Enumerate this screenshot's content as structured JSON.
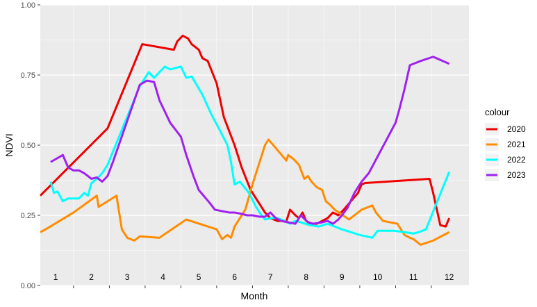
{
  "chart_data": {
    "type": "line",
    "xlabel": "Month",
    "ylabel": "NDVI",
    "legend_title": "colour",
    "legend_position": "right",
    "grid": true,
    "xlim": [
      0.57,
      12.55
    ],
    "ylim": [
      0,
      1
    ],
    "x_ticks": [
      1,
      2,
      3,
      4,
      5,
      6,
      7,
      8,
      9,
      10,
      11,
      12
    ],
    "y_ticks": [
      0,
      0.25,
      0.5,
      0.75,
      1
    ],
    "y_tick_labels": [
      "0.00",
      "0.25",
      "0.50",
      "0.75",
      "1.00"
    ],
    "series": [
      {
        "name": "2020",
        "color": "#ee0000",
        "x": [
          0.57,
          2.45,
          3.42,
          4.3,
          4.4,
          4.55,
          4.7,
          4.8,
          5.0,
          5.1,
          5.25,
          5.5,
          5.7,
          5.85,
          6.0,
          6.2,
          6.45,
          6.7,
          6.85,
          7.0,
          7.2,
          7.45,
          7.55,
          7.7,
          7.8,
          7.9,
          8.0,
          8.15,
          8.3,
          8.45,
          8.6,
          8.75,
          8.9,
          9.05,
          9.25,
          9.45,
          9.55,
          9.65,
          11.45,
          11.55,
          11.75,
          11.9,
          12.0
        ],
        "y": [
          0.32,
          0.56,
          0.86,
          0.84,
          0.87,
          0.89,
          0.88,
          0.86,
          0.84,
          0.81,
          0.8,
          0.72,
          0.6,
          0.55,
          0.5,
          0.42,
          0.34,
          0.29,
          0.26,
          0.24,
          0.23,
          0.23,
          0.27,
          0.25,
          0.24,
          0.26,
          0.23,
          0.22,
          0.22,
          0.23,
          0.24,
          0.26,
          0.25,
          0.27,
          0.3,
          0.33,
          0.36,
          0.365,
          0.38,
          0.33,
          0.215,
          0.21,
          0.24
        ]
      },
      {
        "name": "2021",
        "color": "#ff8c00",
        "x": [
          0.57,
          0.72,
          1.5,
          2.15,
          2.2,
          2.7,
          2.85,
          3.0,
          3.2,
          3.35,
          3.9,
          4.65,
          5.5,
          5.65,
          5.8,
          5.9,
          6.0,
          6.3,
          6.5,
          6.75,
          6.85,
          6.95,
          7.15,
          7.45,
          7.5,
          7.65,
          7.8,
          7.95,
          8.05,
          8.15,
          8.3,
          8.45,
          8.55,
          8.65,
          8.8,
          9.2,
          9.55,
          9.75,
          9.85,
          9.95,
          10.15,
          10.55,
          10.75,
          10.9,
          11.0,
          11.2,
          11.55,
          12.0
        ],
        "y": [
          0.19,
          0.2,
          0.26,
          0.32,
          0.28,
          0.32,
          0.2,
          0.17,
          0.16,
          0.175,
          0.17,
          0.235,
          0.2,
          0.165,
          0.18,
          0.17,
          0.21,
          0.27,
          0.36,
          0.46,
          0.5,
          0.52,
          0.49,
          0.445,
          0.465,
          0.45,
          0.43,
          0.38,
          0.39,
          0.37,
          0.35,
          0.34,
          0.3,
          0.29,
          0.27,
          0.235,
          0.27,
          0.28,
          0.285,
          0.26,
          0.23,
          0.22,
          0.18,
          0.17,
          0.165,
          0.145,
          0.16,
          0.19
        ]
      },
      {
        "name": "2022",
        "color": "#00ffff",
        "x": [
          0.86,
          0.95,
          1.05,
          1.2,
          1.35,
          1.5,
          1.65,
          1.8,
          1.9,
          2.0,
          2.15,
          2.3,
          2.45,
          3.35,
          3.6,
          3.75,
          3.9,
          4.05,
          4.2,
          4.5,
          4.65,
          4.8,
          5.1,
          5.35,
          5.6,
          5.8,
          5.9,
          6.0,
          6.15,
          6.4,
          6.6,
          6.75,
          6.85,
          7.0,
          7.2,
          7.4,
          7.55,
          7.7,
          7.85,
          8.1,
          8.35,
          8.6,
          9.0,
          9.5,
          9.85,
          10.0,
          10.45,
          10.75,
          11.0,
          11.15,
          11.35,
          12.0
        ],
        "y": [
          0.37,
          0.33,
          0.335,
          0.3,
          0.31,
          0.31,
          0.31,
          0.33,
          0.32,
          0.365,
          0.38,
          0.4,
          0.43,
          0.71,
          0.76,
          0.74,
          0.76,
          0.78,
          0.77,
          0.78,
          0.74,
          0.745,
          0.68,
          0.61,
          0.55,
          0.5,
          0.44,
          0.36,
          0.37,
          0.33,
          0.28,
          0.25,
          0.235,
          0.24,
          0.24,
          0.23,
          0.22,
          0.23,
          0.225,
          0.215,
          0.21,
          0.22,
          0.2,
          0.18,
          0.17,
          0.195,
          0.195,
          0.19,
          0.185,
          0.19,
          0.2,
          0.405
        ]
      },
      {
        "name": "2023",
        "color": "#a020f0",
        "x": [
          0.86,
          1.2,
          1.35,
          1.5,
          1.65,
          1.8,
          1.9,
          2.0,
          2.15,
          2.3,
          2.45,
          2.6,
          3.35,
          3.55,
          3.75,
          3.9,
          4.05,
          4.2,
          4.5,
          4.65,
          4.85,
          5.0,
          5.3,
          5.45,
          5.65,
          5.85,
          6.0,
          6.2,
          6.35,
          6.5,
          6.7,
          6.85,
          7.0,
          7.15,
          7.3,
          7.5,
          7.7,
          7.85,
          8.05,
          8.2,
          8.45,
          8.6,
          8.75,
          8.9,
          9.0,
          9.15,
          9.35,
          9.55,
          9.75,
          10.5,
          10.6,
          10.75,
          10.9,
          11.2,
          11.55,
          12.0
        ],
        "y": [
          0.44,
          0.465,
          0.42,
          0.41,
          0.41,
          0.4,
          0.39,
          0.38,
          0.385,
          0.37,
          0.39,
          0.44,
          0.715,
          0.73,
          0.725,
          0.66,
          0.62,
          0.58,
          0.53,
          0.465,
          0.39,
          0.34,
          0.295,
          0.27,
          0.265,
          0.26,
          0.26,
          0.255,
          0.25,
          0.25,
          0.245,
          0.245,
          0.26,
          0.24,
          0.23,
          0.225,
          0.22,
          0.25,
          0.225,
          0.22,
          0.225,
          0.23,
          0.22,
          0.235,
          0.25,
          0.275,
          0.33,
          0.37,
          0.4,
          0.58,
          0.625,
          0.7,
          0.785,
          0.8,
          0.815,
          0.79
        ]
      }
    ]
  }
}
